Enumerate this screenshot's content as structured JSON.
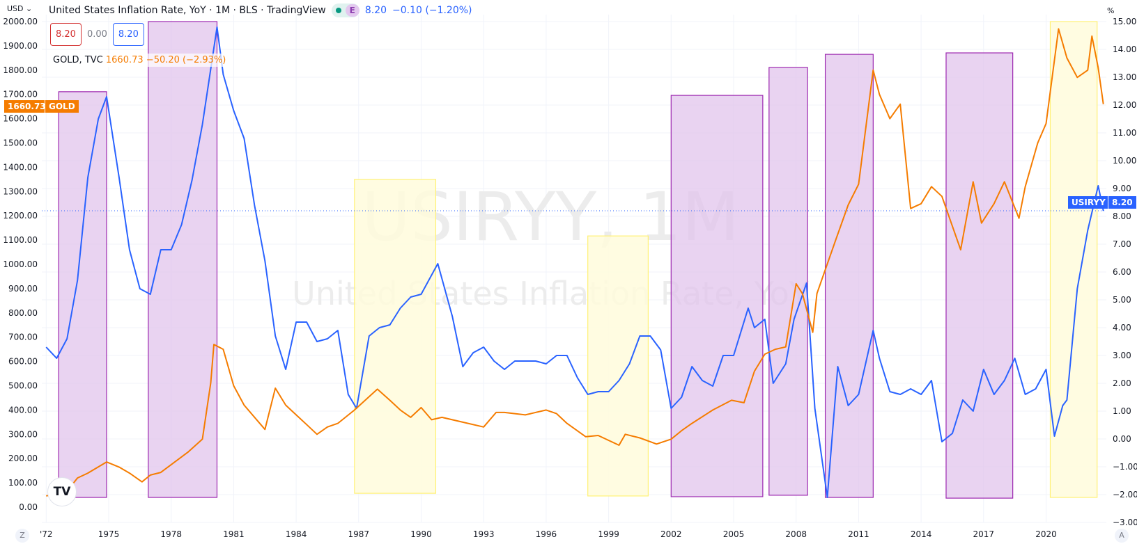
{
  "header": {
    "title": "United States Inflation Rate, YoY · 1M · BLS · TradingView",
    "earnings_badge": "E",
    "value": "8.20",
    "change": "−0.10 (−1.20%)",
    "currency": "USD",
    "percent_unit": "%"
  },
  "ohlc": {
    "open": "8.20",
    "change": "0.00",
    "close": "8.20"
  },
  "gold_legend": {
    "name": "GOLD, TVC",
    "value": "1660.73",
    "change": "−50.20 (−2.93%)"
  },
  "tags": {
    "gold_price": "1660.73",
    "gold_label": "GOLD",
    "usiryy_label": "USIRYY",
    "usiryy_price": "8.20"
  },
  "watermark": {
    "symbol": "USIRYY, 1M",
    "description": "United States Inflation Rate, YoY"
  },
  "buttons": {
    "zoom": "Z",
    "auto": "A"
  },
  "colors": {
    "inflation": "#2962ff",
    "gold": "#f57c00",
    "purple_box": "#9c27b0",
    "purple_fill": "#e1c4ec",
    "yellow_box": "#fff176",
    "yellow_fill": "#fffbdc"
  },
  "chart_data": {
    "type": "line",
    "x_ticks": [
      "'72",
      "1975",
      "1978",
      "1981",
      "1984",
      "1987",
      "1990",
      "1993",
      "1996",
      "1999",
      "2002",
      "2005",
      "2008",
      "2011",
      "2014",
      "2017",
      "2020"
    ],
    "x_tick_years": [
      1972,
      1975,
      1978,
      1981,
      1984,
      1987,
      1990,
      1993,
      1996,
      1999,
      2002,
      2005,
      2008,
      2011,
      2014,
      2017,
      2020
    ],
    "left_axis": {
      "unit": "USD",
      "range": [
        0,
        2000
      ],
      "ticks": [
        "0.00",
        "100.00",
        "200.00",
        "300.00",
        "400.00",
        "500.00",
        "600.00",
        "700.00",
        "800.00",
        "900.00",
        "1000.00",
        "1100.00",
        "1200.00",
        "1300.00",
        "1400.00",
        "1500.00",
        "1600.00",
        "1700.00",
        "1800.00",
        "1900.00",
        "2000.00"
      ]
    },
    "right_axis": {
      "unit": "%",
      "range": [
        -3,
        15
      ],
      "ticks": [
        "-3.00",
        "-2.00",
        "-1.00",
        "0.00",
        "1.00",
        "2.00",
        "3.00",
        "4.00",
        "5.00",
        "6.00",
        "7.00",
        "8.00",
        "9.00",
        "10.00",
        "11.00",
        "12.00",
        "13.00",
        "14.00",
        "15.00"
      ]
    },
    "grid": true,
    "series": [
      {
        "name": "USIRYY",
        "axis": "right",
        "color": "#2962ff",
        "points": [
          [
            1972.0,
            3.3
          ],
          [
            1972.5,
            2.9
          ],
          [
            1973.0,
            3.6
          ],
          [
            1973.5,
            5.7
          ],
          [
            1974.0,
            9.4
          ],
          [
            1974.5,
            11.5
          ],
          [
            1974.9,
            12.3
          ],
          [
            1975.5,
            9.4
          ],
          [
            1976.0,
            6.8
          ],
          [
            1976.5,
            5.4
          ],
          [
            1977.0,
            5.2
          ],
          [
            1977.5,
            6.8
          ],
          [
            1978.0,
            6.8
          ],
          [
            1978.5,
            7.7
          ],
          [
            1979.0,
            9.3
          ],
          [
            1979.5,
            11.3
          ],
          [
            1980.2,
            14.8
          ],
          [
            1980.5,
            13.1
          ],
          [
            1981.0,
            11.8
          ],
          [
            1981.5,
            10.8
          ],
          [
            1982.0,
            8.4
          ],
          [
            1982.5,
            6.4
          ],
          [
            1983.0,
            3.7
          ],
          [
            1983.5,
            2.5
          ],
          [
            1984.0,
            4.2
          ],
          [
            1984.5,
            4.2
          ],
          [
            1985.0,
            3.5
          ],
          [
            1985.5,
            3.6
          ],
          [
            1986.0,
            3.9
          ],
          [
            1986.5,
            1.6
          ],
          [
            1986.9,
            1.1
          ],
          [
            1987.5,
            3.7
          ],
          [
            1988.0,
            4.0
          ],
          [
            1988.5,
            4.1
          ],
          [
            1989.0,
            4.7
          ],
          [
            1989.5,
            5.1
          ],
          [
            1990.0,
            5.2
          ],
          [
            1990.8,
            6.3
          ],
          [
            1991.5,
            4.4
          ],
          [
            1992.0,
            2.6
          ],
          [
            1992.5,
            3.1
          ],
          [
            1993.0,
            3.3
          ],
          [
            1993.5,
            2.8
          ],
          [
            1994.0,
            2.5
          ],
          [
            1994.5,
            2.8
          ],
          [
            1995.0,
            2.8
          ],
          [
            1995.5,
            2.8
          ],
          [
            1996.0,
            2.7
          ],
          [
            1996.5,
            3.0
          ],
          [
            1997.0,
            3.0
          ],
          [
            1997.5,
            2.2
          ],
          [
            1998.0,
            1.6
          ],
          [
            1998.5,
            1.7
          ],
          [
            1999.0,
            1.7
          ],
          [
            1999.5,
            2.1
          ],
          [
            2000.0,
            2.7
          ],
          [
            2000.5,
            3.7
          ],
          [
            2001.0,
            3.7
          ],
          [
            2001.5,
            3.2
          ],
          [
            2002.0,
            1.1
          ],
          [
            2002.5,
            1.5
          ],
          [
            2003.0,
            2.6
          ],
          [
            2003.5,
            2.1
          ],
          [
            2004.0,
            1.9
          ],
          [
            2004.5,
            3.0
          ],
          [
            2005.0,
            3.0
          ],
          [
            2005.7,
            4.7
          ],
          [
            2006.0,
            4.0
          ],
          [
            2006.5,
            4.3
          ],
          [
            2006.9,
            2.0
          ],
          [
            2007.5,
            2.7
          ],
          [
            2007.9,
            4.3
          ],
          [
            2008.5,
            5.6
          ],
          [
            2008.9,
            1.1
          ],
          [
            2009.5,
            -2.1
          ],
          [
            2010.0,
            2.6
          ],
          [
            2010.5,
            1.2
          ],
          [
            2011.0,
            1.6
          ],
          [
            2011.7,
            3.9
          ],
          [
            2012.0,
            2.9
          ],
          [
            2012.5,
            1.7
          ],
          [
            2013.0,
            1.6
          ],
          [
            2013.5,
            1.8
          ],
          [
            2014.0,
            1.6
          ],
          [
            2014.5,
            2.1
          ],
          [
            2015.0,
            -0.1
          ],
          [
            2015.5,
            0.2
          ],
          [
            2016.0,
            1.4
          ],
          [
            2016.5,
            1.0
          ],
          [
            2017.0,
            2.5
          ],
          [
            2017.5,
            1.6
          ],
          [
            2018.0,
            2.1
          ],
          [
            2018.5,
            2.9
          ],
          [
            2019.0,
            1.6
          ],
          [
            2019.5,
            1.8
          ],
          [
            2020.0,
            2.5
          ],
          [
            2020.4,
            0.1
          ],
          [
            2020.8,
            1.2
          ],
          [
            2021.0,
            1.4
          ],
          [
            2021.5,
            5.4
          ],
          [
            2022.0,
            7.5
          ],
          [
            2022.5,
            9.1
          ],
          [
            2022.75,
            8.2
          ]
        ]
      },
      {
        "name": "GOLD",
        "axis": "left",
        "color": "#f57c00",
        "points": [
          [
            1972.0,
            46
          ],
          [
            1973.0,
            65
          ],
          [
            1973.5,
            120
          ],
          [
            1974.0,
            140
          ],
          [
            1974.9,
            186
          ],
          [
            1975.5,
            165
          ],
          [
            1976.0,
            140
          ],
          [
            1976.6,
            104
          ],
          [
            1977.0,
            132
          ],
          [
            1977.5,
            143
          ],
          [
            1978.0,
            175
          ],
          [
            1978.8,
            226
          ],
          [
            1979.5,
            280
          ],
          [
            1979.9,
            512
          ],
          [
            1980.05,
            670
          ],
          [
            1980.5,
            650
          ],
          [
            1981.0,
            500
          ],
          [
            1981.5,
            420
          ],
          [
            1982.5,
            320
          ],
          [
            1983.0,
            490
          ],
          [
            1983.5,
            420
          ],
          [
            1984.0,
            380
          ],
          [
            1984.5,
            340
          ],
          [
            1985.0,
            300
          ],
          [
            1985.5,
            330
          ],
          [
            1986.0,
            345
          ],
          [
            1986.8,
            400
          ],
          [
            1987.9,
            486
          ],
          [
            1988.5,
            440
          ],
          [
            1989.0,
            400
          ],
          [
            1989.5,
            370
          ],
          [
            1990.0,
            410
          ],
          [
            1990.5,
            360
          ],
          [
            1991.0,
            370
          ],
          [
            1992.0,
            350
          ],
          [
            1993.0,
            330
          ],
          [
            1993.6,
            390
          ],
          [
            1994.0,
            390
          ],
          [
            1995.0,
            380
          ],
          [
            1996.0,
            400
          ],
          [
            1996.5,
            385
          ],
          [
            1997.0,
            345
          ],
          [
            1997.9,
            290
          ],
          [
            1998.5,
            295
          ],
          [
            1999.5,
            255
          ],
          [
            1999.8,
            300
          ],
          [
            2000.5,
            285
          ],
          [
            2001.3,
            260
          ],
          [
            2002.0,
            280
          ],
          [
            2002.5,
            315
          ],
          [
            2003.0,
            345
          ],
          [
            2004.0,
            400
          ],
          [
            2004.9,
            440
          ],
          [
            2005.5,
            430
          ],
          [
            2006.0,
            560
          ],
          [
            2006.5,
            630
          ],
          [
            2007.0,
            650
          ],
          [
            2007.5,
            660
          ],
          [
            2008.0,
            920
          ],
          [
            2008.3,
            880
          ],
          [
            2008.8,
            720
          ],
          [
            2009.0,
            880
          ],
          [
            2009.9,
            1100
          ],
          [
            2010.5,
            1245
          ],
          [
            2011.0,
            1330
          ],
          [
            2011.7,
            1800
          ],
          [
            2012.0,
            1700
          ],
          [
            2012.5,
            1600
          ],
          [
            2013.0,
            1660
          ],
          [
            2013.5,
            1230
          ],
          [
            2014.0,
            1250
          ],
          [
            2014.5,
            1320
          ],
          [
            2015.0,
            1280
          ],
          [
            2015.9,
            1060
          ],
          [
            2016.5,
            1340
          ],
          [
            2016.9,
            1170
          ],
          [
            2017.5,
            1250
          ],
          [
            2018.0,
            1340
          ],
          [
            2018.7,
            1190
          ],
          [
            2019.0,
            1320
          ],
          [
            2019.6,
            1500
          ],
          [
            2020.0,
            1580
          ],
          [
            2020.6,
            1970
          ],
          [
            2021.0,
            1850
          ],
          [
            2021.5,
            1770
          ],
          [
            2022.0,
            1800
          ],
          [
            2022.2,
            1940
          ],
          [
            2022.5,
            1810
          ],
          [
            2022.75,
            1660
          ]
        ]
      }
    ],
    "annotations": [
      {
        "kind": "purple",
        "from": 1972.6,
        "to": 1974.9,
        "top": 1711,
        "bottom": 40
      },
      {
        "kind": "purple",
        "from": 1976.9,
        "to": 1980.2,
        "top": 2000,
        "bottom": 40
      },
      {
        "kind": "yellow",
        "from": 1986.8,
        "to": 1990.7,
        "top": 1350,
        "bottom": 57
      },
      {
        "kind": "yellow",
        "from": 1998.0,
        "to": 2000.9,
        "top": 1117,
        "bottom": 46
      },
      {
        "kind": "purple",
        "from": 2002.0,
        "to": 2006.4,
        "top": 1696,
        "bottom": 43
      },
      {
        "kind": "purple",
        "from": 2006.7,
        "to": 2008.55,
        "top": 1811,
        "bottom": 49
      },
      {
        "kind": "purple",
        "from": 2009.4,
        "to": 2011.7,
        "top": 1865,
        "bottom": 40
      },
      {
        "kind": "purple",
        "from": 2015.2,
        "to": 2018.4,
        "top": 1871,
        "bottom": 37
      },
      {
        "kind": "yellow",
        "from": 2020.2,
        "to": 2022.45,
        "top": 2000,
        "bottom": 40
      }
    ],
    "last_value_line": 8.2
  }
}
